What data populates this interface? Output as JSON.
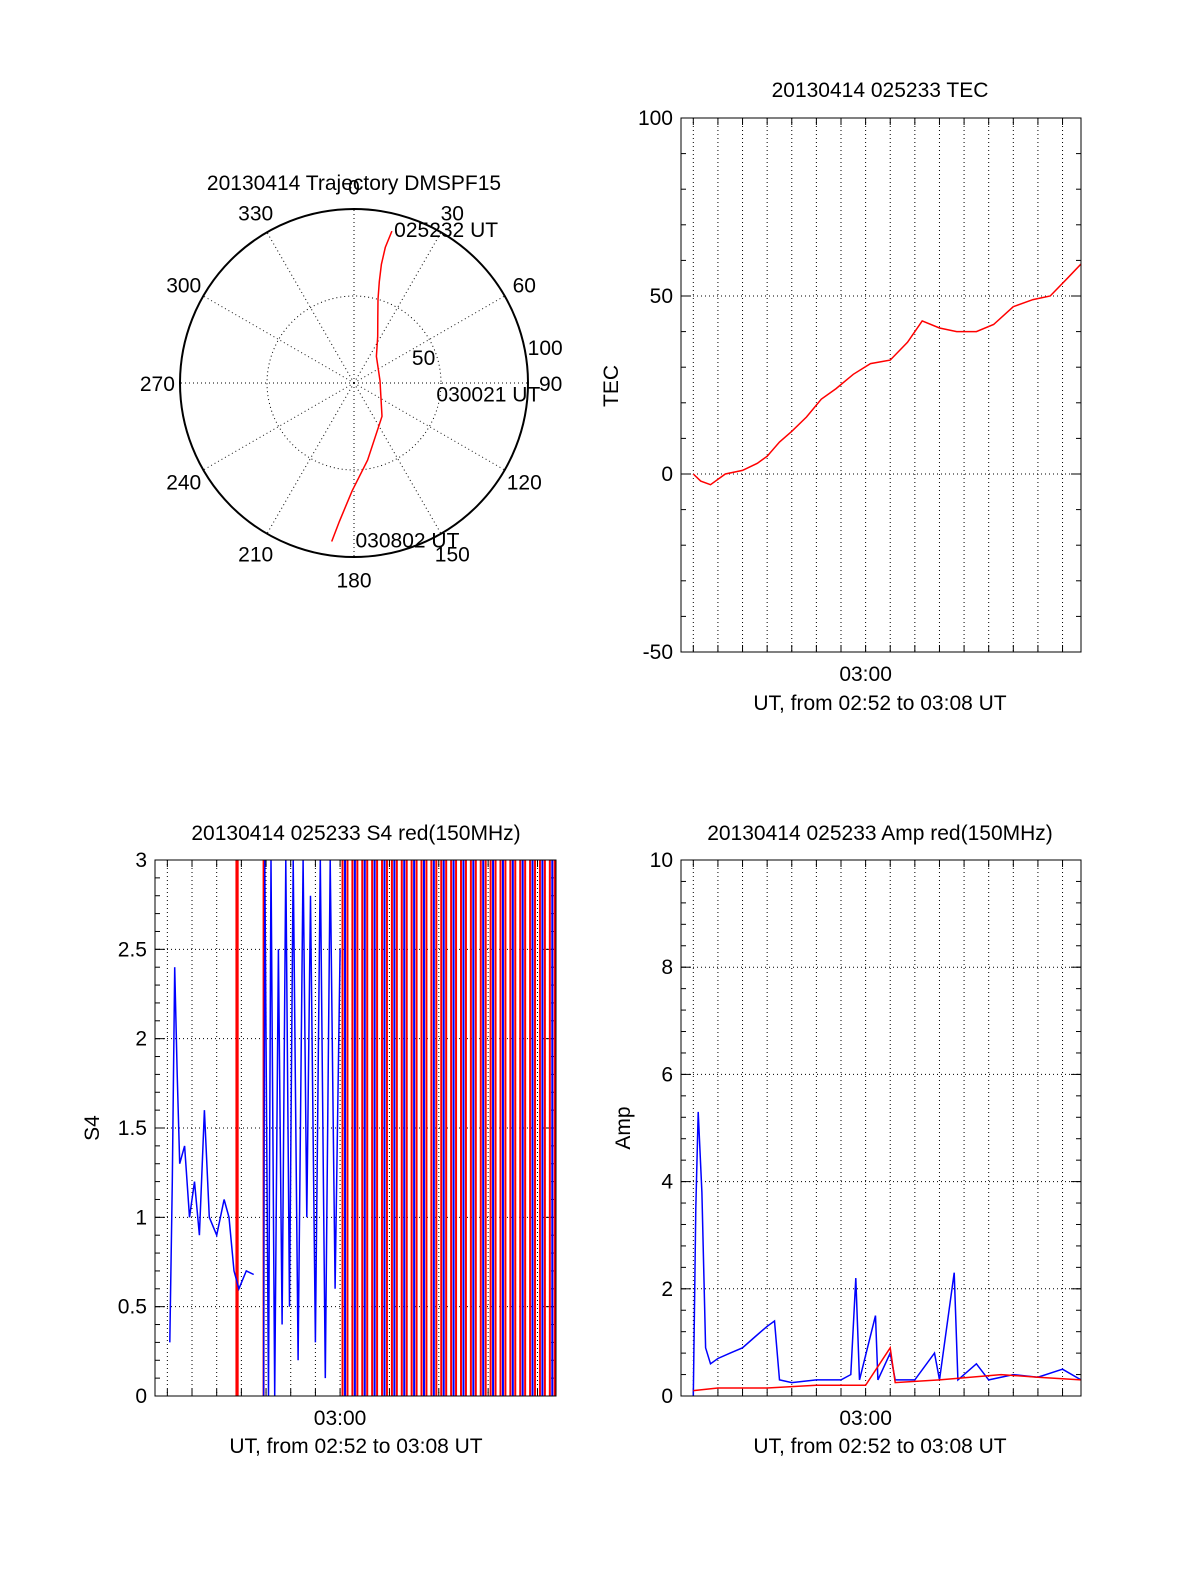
{
  "colors": {
    "red": "#ff0000",
    "blue": "#0000ff",
    "axis": "#000000"
  },
  "chart_data": [
    {
      "id": "trajectory",
      "type": "polar",
      "title": "20130414 Trajectory DMSPF15",
      "azimuth_labels": [
        "0",
        "30",
        "60",
        "90",
        "120",
        "150",
        "180",
        "210",
        "240",
        "270",
        "300",
        "330"
      ],
      "radius_labels": [
        "50",
        "100"
      ],
      "rlim": [
        0,
        100
      ],
      "grid": true,
      "series": [
        {
          "color": "red",
          "points": [
            [
              14,
              90
            ],
            [
              13,
              80
            ],
            [
              13,
              70
            ],
            [
              14,
              60
            ],
            [
              16,
              50
            ],
            [
              20,
              40
            ],
            [
              27,
              30
            ],
            [
              40,
              20
            ],
            [
              85,
              15
            ],
            [
              140,
              25
            ],
            [
              170,
              45
            ],
            [
              181,
              62
            ],
            [
              186,
              80
            ],
            [
              188,
              92
            ]
          ]
        }
      ],
      "annotations": [
        {
          "text": "025232 UT",
          "az": 16,
          "r": 92
        },
        {
          "text": "030021 UT",
          "az": 97,
          "r": 50
        },
        {
          "text": "030802 UT",
          "az": 178,
          "r": 90
        }
      ]
    },
    {
      "id": "tec",
      "type": "line",
      "title": "20130414 025233 TEC",
      "xlabel": "UT, from 02:52 to 03:08 UT",
      "ylabel": "TEC",
      "xlim": [
        172.5,
        188.75
      ],
      "ylim": [
        -50,
        100
      ],
      "yticks": [
        "-50",
        "0",
        "50",
        "100"
      ],
      "xtick_labels": [
        {
          "x": 180,
          "label": "03:00"
        }
      ],
      "grid": true,
      "series": [
        {
          "color": "red",
          "points": [
            [
              173,
              0
            ],
            [
              173.3,
              -2
            ],
            [
              173.7,
              -3
            ],
            [
              174.3,
              0
            ],
            [
              175,
              1
            ],
            [
              175.6,
              3
            ],
            [
              176,
              5
            ],
            [
              176.5,
              9
            ],
            [
              177,
              12
            ],
            [
              177.6,
              16
            ],
            [
              178.2,
              21
            ],
            [
              178.8,
              24
            ],
            [
              179.5,
              28
            ],
            [
              180.2,
              31
            ],
            [
              181,
              32
            ],
            [
              181.7,
              37
            ],
            [
              182.3,
              43
            ],
            [
              183,
              41
            ],
            [
              183.7,
              40
            ],
            [
              184.5,
              40
            ],
            [
              185.2,
              42
            ],
            [
              186,
              47
            ],
            [
              186.8,
              49
            ],
            [
              187.5,
              50
            ],
            [
              188.2,
              55
            ],
            [
              188.75,
              59
            ]
          ]
        }
      ]
    },
    {
      "id": "s4",
      "type": "line",
      "title": "20130414 025233 S4 red(150MHz)",
      "xlabel": "UT, from 02:52 to 03:08 UT",
      "ylabel": "S4",
      "xlim": [
        172.5,
        188.75
      ],
      "ylim": [
        0,
        3
      ],
      "yticks": [
        "0",
        "0.5",
        "1",
        "1.5",
        "2",
        "2.5",
        "3"
      ],
      "xtick_labels": [
        {
          "x": 180,
          "label": "03:00"
        }
      ],
      "grid": true,
      "series": [
        {
          "color": "blue",
          "points": [
            [
              173.1,
              0.3
            ],
            [
              173.2,
              1.2
            ],
            [
              173.3,
              2.4
            ],
            [
              173.4,
              1.8
            ],
            [
              173.5,
              1.3
            ],
            [
              173.7,
              1.4
            ],
            [
              173.9,
              1.0
            ],
            [
              174.1,
              1.2
            ],
            [
              174.3,
              0.9
            ],
            [
              174.5,
              1.6
            ],
            [
              174.7,
              1.0
            ],
            [
              175.0,
              0.9
            ],
            [
              175.3,
              1.1
            ],
            [
              175.5,
              1.0
            ],
            [
              175.7,
              0.7
            ],
            [
              175.9,
              0.6
            ],
            [
              176.2,
              0.7
            ],
            [
              176.5,
              0.68
            ]
          ]
        },
        {
          "color": "blue",
          "points": [
            [
              176.9,
              0
            ],
            [
              176.95,
              3
            ],
            [
              177.1,
              0
            ],
            [
              177.2,
              3
            ],
            [
              177.35,
              0
            ],
            [
              177.5,
              2.5
            ],
            [
              177.65,
              0.4
            ],
            [
              177.8,
              3
            ],
            [
              177.95,
              0.5
            ],
            [
              178.1,
              3
            ],
            [
              178.3,
              0.2
            ],
            [
              178.5,
              3
            ],
            [
              178.65,
              1.0
            ],
            [
              178.8,
              2.8
            ],
            [
              179.0,
              0.3
            ],
            [
              179.2,
              3
            ],
            [
              179.4,
              0.1
            ],
            [
              179.6,
              3
            ],
            [
              179.8,
              0.6
            ],
            [
              180.0,
              2.5
            ]
          ]
        }
      ],
      "spikes": [
        {
          "color": "red",
          "x": [
            175.8,
            175.85,
            176.9,
            180.1,
            180.3,
            180.5,
            180.7,
            180.9,
            181.1,
            181.3,
            181.5,
            181.7,
            181.9,
            182.1,
            182.3,
            182.5,
            182.7,
            182.9,
            183.1,
            183.3,
            183.5,
            183.7,
            183.9,
            184.1,
            184.3,
            184.5,
            184.7,
            184.9,
            185.1,
            185.3,
            185.5,
            185.7,
            185.9,
            186.1,
            186.3,
            186.5,
            186.7,
            186.9,
            187.1,
            187.3,
            187.5,
            187.7,
            187.9,
            188.1,
            188.3,
            188.5,
            188.7
          ]
        },
        {
          "color": "blue",
          "x": [
            180.2,
            180.6,
            181.0,
            181.4,
            181.8,
            182.2,
            182.6,
            183.0,
            183.4,
            183.8,
            184.2,
            184.6,
            185.0,
            185.4,
            185.8,
            186.2,
            186.6,
            187.0,
            187.4,
            187.8,
            188.2,
            188.6
          ]
        }
      ]
    },
    {
      "id": "amp",
      "type": "line",
      "title": "20130414 025233 Amp red(150MHz)",
      "xlabel": "UT, from 02:52 to 03:08 UT",
      "ylabel": "Amp",
      "xlim": [
        172.5,
        188.75
      ],
      "ylim": [
        0,
        10
      ],
      "yticks": [
        "0",
        "2",
        "4",
        "6",
        "8",
        "10"
      ],
      "xtick_labels": [
        {
          "x": 180,
          "label": "03:00"
        }
      ],
      "grid": true,
      "series": [
        {
          "color": "blue",
          "points": [
            [
              173.0,
              0
            ],
            [
              173.1,
              3.5
            ],
            [
              173.2,
              5.3
            ],
            [
              173.35,
              3.8
            ],
            [
              173.5,
              0.9
            ],
            [
              173.7,
              0.6
            ],
            [
              174.0,
              0.7
            ],
            [
              174.5,
              0.8
            ],
            [
              175.0,
              0.9
            ],
            [
              175.5,
              1.1
            ],
            [
              176.0,
              1.3
            ],
            [
              176.3,
              1.4
            ],
            [
              176.5,
              0.3
            ],
            [
              177.0,
              0.25
            ],
            [
              178.0,
              0.3
            ],
            [
              179.0,
              0.3
            ],
            [
              179.4,
              0.4
            ],
            [
              179.6,
              2.2
            ],
            [
              179.75,
              0.3
            ],
            [
              180.4,
              1.5
            ],
            [
              180.5,
              0.3
            ],
            [
              181.0,
              0.8
            ],
            [
              181.2,
              0.3
            ],
            [
              182.0,
              0.3
            ],
            [
              182.8,
              0.8
            ],
            [
              183.0,
              0.3
            ],
            [
              183.6,
              2.3
            ],
            [
              183.75,
              0.3
            ],
            [
              184.5,
              0.6
            ],
            [
              185.0,
              0.3
            ],
            [
              186.0,
              0.4
            ],
            [
              187.0,
              0.35
            ],
            [
              188.0,
              0.5
            ],
            [
              188.75,
              0.3
            ]
          ]
        },
        {
          "color": "red",
          "points": [
            [
              173.0,
              0.1
            ],
            [
              174.0,
              0.15
            ],
            [
              176.0,
              0.15
            ],
            [
              178.0,
              0.2
            ],
            [
              180.0,
              0.2
            ],
            [
              181.0,
              0.9
            ],
            [
              181.2,
              0.25
            ],
            [
              183.0,
              0.3
            ],
            [
              185.5,
              0.4
            ],
            [
              187.0,
              0.35
            ],
            [
              188.75,
              0.3
            ]
          ]
        }
      ]
    }
  ]
}
